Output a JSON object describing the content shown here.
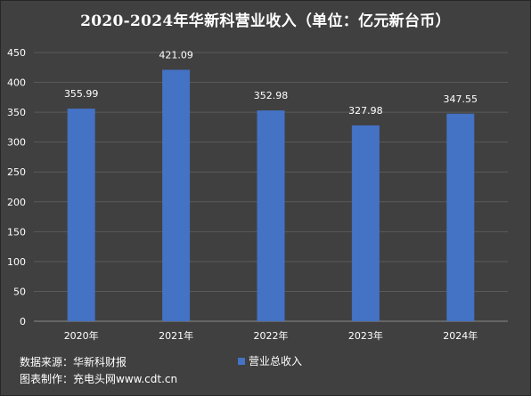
{
  "chart_data": {
    "type": "bar",
    "title": "2020-2024年华新科营业收入（单位：亿元新台币）",
    "categories": [
      "2020年",
      "2021年",
      "2022年",
      "2023年",
      "2024年"
    ],
    "series": [
      {
        "name": "营业总收入",
        "values": [
          355.99,
          421.09,
          352.98,
          327.98,
          347.55
        ]
      }
    ],
    "data_labels": [
      "355.99",
      "421.09",
      "352.98",
      "327.98",
      "347.55"
    ],
    "ylim": [
      0,
      450
    ],
    "yticks": [
      0,
      50,
      100,
      150,
      200,
      250,
      300,
      350,
      400,
      450
    ],
    "grid": true,
    "legend": "bottom",
    "bar_color": "#4472c4"
  },
  "footer": {
    "source": "数据来源：华新科财报",
    "maker": "图表制作：充电头网www.cdt.cn"
  },
  "colors": {
    "background": "#404040",
    "gridline": "#5a5a5a",
    "text": "#ffffff"
  }
}
